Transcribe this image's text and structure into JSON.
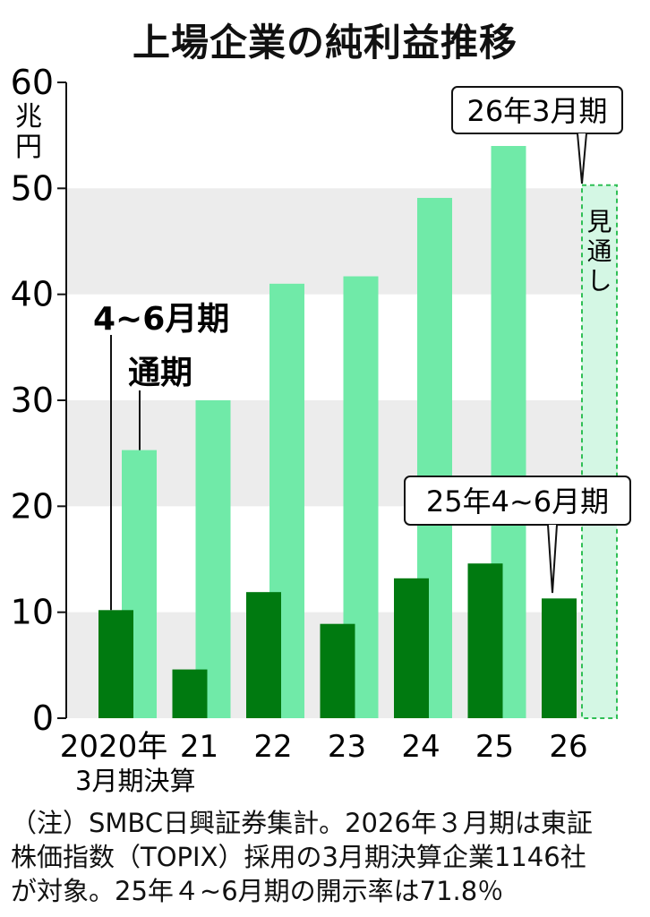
{
  "chart_data": {
    "type": "bar",
    "title": "上場企業の純利益推移",
    "ylabel": "兆円",
    "ylim": [
      0,
      60
    ],
    "yticks": [
      "0",
      "10",
      "20",
      "30",
      "40",
      "50",
      "60"
    ],
    "categories": [
      "2020年",
      "21",
      "22",
      "23",
      "24",
      "25",
      "26"
    ],
    "xsublabel": "3月期決算",
    "series": [
      {
        "name": "4~6月期",
        "color": "#007a10",
        "values": [
          10.2,
          4.6,
          11.9,
          8.9,
          13.2,
          14.6,
          11.3
        ]
      },
      {
        "name": "通期",
        "color": "#70eaa8",
        "values": [
          25.3,
          30.0,
          41.0,
          41.7,
          49.1,
          54.0,
          null
        ]
      }
    ],
    "forecast": {
      "category": "26",
      "value": 50.3,
      "label": "見通し",
      "color": "#d4f7e4",
      "border": "#2fbf55"
    },
    "callouts": {
      "fy26": "26年3月期",
      "q25": "25年4~6月期"
    },
    "grid": "banded",
    "band_color": "#ececec"
  },
  "note": {
    "lines": [
      "（注）SMBC日興証券集計。2026年３月期は東証",
      "株価指数（TOPIX）採用の3月期決算企業1146社",
      "が対象。25年４~6月期の開示率は71.8％"
    ]
  }
}
